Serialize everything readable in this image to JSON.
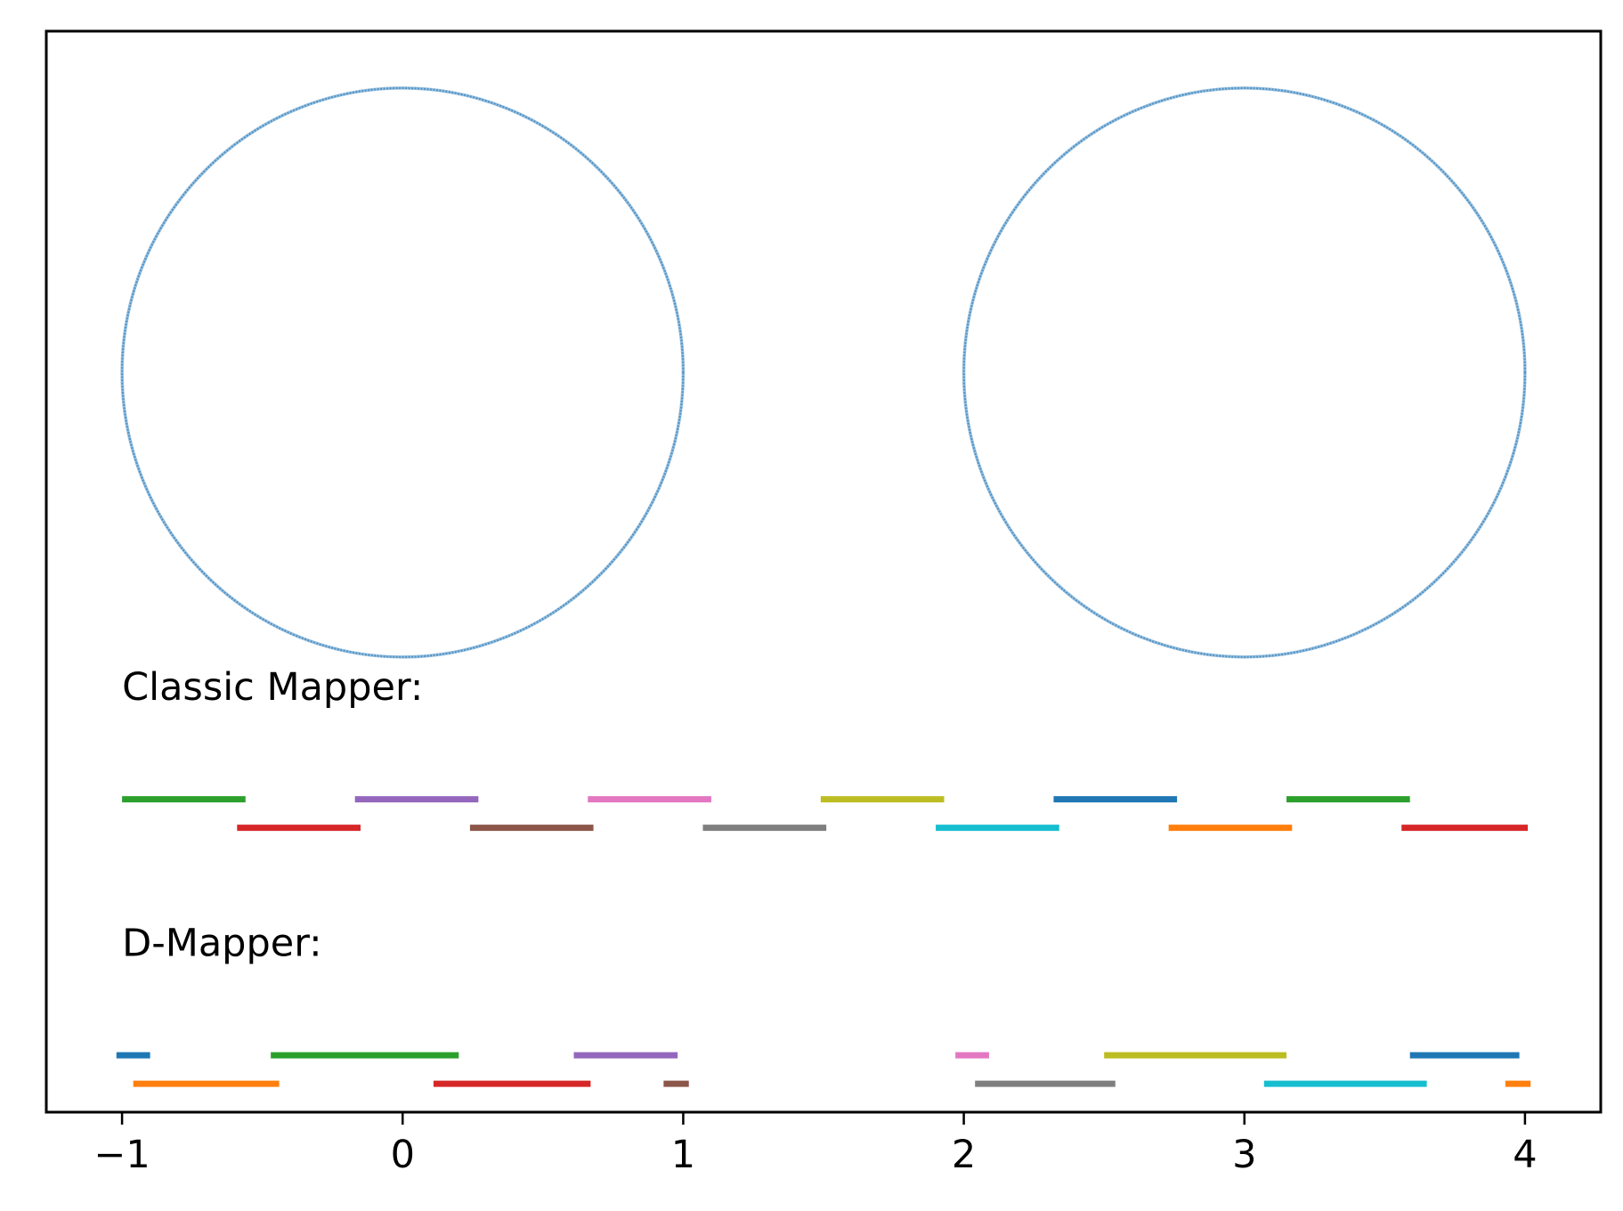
{
  "chart_data": {
    "type": "scatter",
    "title": "",
    "xlabel": "",
    "ylabel": "",
    "xlim": [
      -1.27,
      4.27
    ],
    "ylim": [
      -2.6,
      1.2
    ],
    "grid": false,
    "legend": "none",
    "xticks": [
      -1,
      0,
      1,
      2,
      3,
      4
    ],
    "xtick_labels": [
      "−1",
      "0",
      "1",
      "2",
      "3",
      "4"
    ],
    "point_color": "#4a8fc4",
    "circles": [
      {
        "cx": 0,
        "cy": 0,
        "r": 1
      },
      {
        "cx": 3,
        "cy": 0,
        "r": 1
      }
    ],
    "annotations": [
      {
        "text": "Classic Mapper:",
        "x": -1.0,
        "y": -1.15
      },
      {
        "text": "D-Mapper:",
        "x": -1.0,
        "y": -2.05
      }
    ],
    "classic_intervals": [
      {
        "start": -1.0,
        "end": -0.56,
        "level": 0,
        "color": "#2ca02c"
      },
      {
        "start": -0.59,
        "end": -0.15,
        "level": 1,
        "color": "#d62728"
      },
      {
        "start": -0.17,
        "end": 0.27,
        "level": 0,
        "color": "#9467bd"
      },
      {
        "start": 0.24,
        "end": 0.68,
        "level": 1,
        "color": "#8c564b"
      },
      {
        "start": 0.66,
        "end": 1.1,
        "level": 0,
        "color": "#e377c2"
      },
      {
        "start": 1.07,
        "end": 1.51,
        "level": 1,
        "color": "#7f7f7f"
      },
      {
        "start": 1.49,
        "end": 1.93,
        "level": 0,
        "color": "#bcbd22"
      },
      {
        "start": 1.9,
        "end": 2.34,
        "level": 1,
        "color": "#17becf"
      },
      {
        "start": 2.32,
        "end": 2.76,
        "level": 0,
        "color": "#1f77b4"
      },
      {
        "start": 2.73,
        "end": 3.17,
        "level": 1,
        "color": "#ff7f0e"
      },
      {
        "start": 3.15,
        "end": 3.59,
        "level": 0,
        "color": "#2ca02c"
      },
      {
        "start": 3.56,
        "end": 4.01,
        "level": 1,
        "color": "#d62728"
      }
    ],
    "dmapper_intervals": [
      {
        "start": -1.02,
        "end": -0.9,
        "level": 0,
        "color": "#1f77b4"
      },
      {
        "start": -0.96,
        "end": -0.44,
        "level": 1,
        "color": "#ff7f0e"
      },
      {
        "start": -0.47,
        "end": 0.2,
        "level": 0,
        "color": "#2ca02c"
      },
      {
        "start": 0.11,
        "end": 0.67,
        "level": 1,
        "color": "#d62728"
      },
      {
        "start": 0.61,
        "end": 0.98,
        "level": 0,
        "color": "#9467bd"
      },
      {
        "start": 0.93,
        "end": 1.02,
        "level": 1,
        "color": "#8c564b"
      },
      {
        "start": 1.97,
        "end": 2.09,
        "level": 0,
        "color": "#e377c2"
      },
      {
        "start": 2.04,
        "end": 2.54,
        "level": 1,
        "color": "#7f7f7f"
      },
      {
        "start": 2.5,
        "end": 3.15,
        "level": 0,
        "color": "#bcbd22"
      },
      {
        "start": 3.07,
        "end": 3.65,
        "level": 1,
        "color": "#17becf"
      },
      {
        "start": 3.59,
        "end": 3.98,
        "level": 0,
        "color": "#1f77b4"
      },
      {
        "start": 3.93,
        "end": 4.02,
        "level": 1,
        "color": "#ff7f0e"
      }
    ]
  }
}
